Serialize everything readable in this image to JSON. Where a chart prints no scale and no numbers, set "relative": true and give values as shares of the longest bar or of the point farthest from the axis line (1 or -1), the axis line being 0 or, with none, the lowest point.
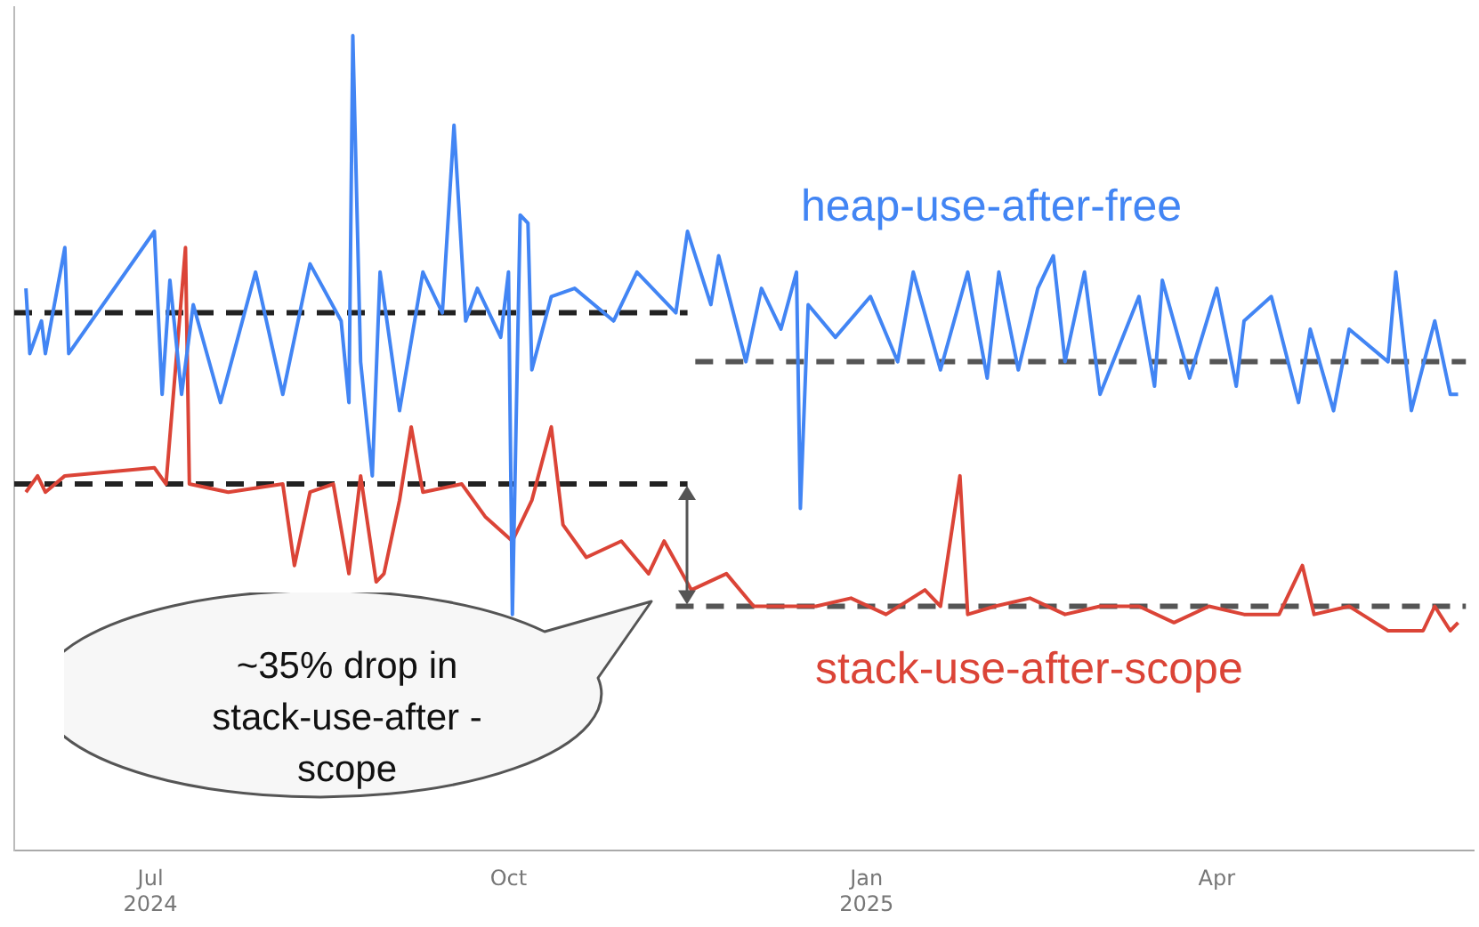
{
  "chart_data": {
    "type": "line",
    "relative": true,
    "legend": false,
    "marker": "none",
    "xlim": [
      "2024-05-27",
      "2025-06-06"
    ],
    "xticks": [
      {
        "value": "2024-07-01",
        "label": "Jul\n2024"
      },
      {
        "value": "2024-10-01",
        "label": "Oct"
      },
      {
        "value": "2025-01-01",
        "label": "Jan\n2025"
      },
      {
        "value": "2025-04-01",
        "label": "Apr"
      }
    ],
    "annotations": [
      "~35% drop in stack-use-after -scope"
    ],
    "series": [
      {
        "name": "heap-use-after-free",
        "color": "#4285f4",
        "x": [
          "2024-05-30",
          "2024-05-31",
          "2024-06-03",
          "2024-06-04",
          "2024-06-09",
          "2024-06-10",
          "2024-07-02",
          "2024-07-04",
          "2024-07-06",
          "2024-07-09",
          "2024-07-12",
          "2024-07-19",
          "2024-07-28",
          "2024-08-04",
          "2024-08-11",
          "2024-08-19",
          "2024-08-21",
          "2024-08-22",
          "2024-08-24",
          "2024-08-27",
          "2024-08-29",
          "2024-09-03",
          "2024-09-09",
          "2024-09-14",
          "2024-09-17",
          "2024-09-20",
          "2024-09-23",
          "2024-09-29",
          "2024-10-01",
          "2024-10-02",
          "2024-10-04",
          "2024-10-06",
          "2024-10-07",
          "2024-10-12",
          "2024-10-18",
          "2024-10-28",
          "2024-11-03",
          "2024-11-13",
          "2024-11-16",
          "2024-11-22",
          "2024-11-24",
          "2024-12-01",
          "2024-12-05",
          "2024-12-10",
          "2024-12-14",
          "2024-12-15",
          "2024-12-17",
          "2024-12-24",
          "2025-01-02",
          "2025-01-09",
          "2025-01-13",
          "2025-01-20",
          "2025-01-27",
          "2025-02-01",
          "2025-02-04",
          "2025-02-09",
          "2025-02-14",
          "2025-02-18",
          "2025-02-21",
          "2025-02-26",
          "2025-03-02",
          "2025-03-12",
          "2025-03-16",
          "2025-03-18",
          "2025-03-25",
          "2025-04-01",
          "2025-04-06",
          "2025-04-08",
          "2025-04-15",
          "2025-04-22",
          "2025-04-25",
          "2025-05-01",
          "2025-05-05",
          "2025-05-15",
          "2025-05-17",
          "2025-05-21",
          "2025-05-27",
          "2025-05-31",
          "2025-06-02"
        ],
        "values": [
          0.69,
          0.61,
          0.65,
          0.61,
          0.74,
          0.61,
          0.76,
          0.56,
          0.7,
          0.56,
          0.67,
          0.55,
          0.71,
          0.56,
          0.72,
          0.65,
          0.55,
          1.0,
          0.6,
          0.46,
          0.71,
          0.54,
          0.71,
          0.66,
          0.89,
          0.65,
          0.69,
          0.63,
          0.71,
          0.29,
          0.78,
          0.77,
          0.59,
          0.68,
          0.69,
          0.65,
          0.71,
          0.66,
          0.76,
          0.67,
          0.73,
          0.6,
          0.69,
          0.64,
          0.71,
          0.42,
          0.67,
          0.63,
          0.68,
          0.6,
          0.71,
          0.59,
          0.71,
          0.58,
          0.71,
          0.59,
          0.69,
          0.73,
          0.6,
          0.71,
          0.56,
          0.68,
          0.57,
          0.7,
          0.58,
          0.69,
          0.57,
          0.65,
          0.68,
          0.55,
          0.64,
          0.54,
          0.64,
          0.6,
          0.71,
          0.54,
          0.65,
          0.56,
          0.56
        ]
      },
      {
        "name": "stack-use-after-scope",
        "color": "#db4437",
        "x": [
          "2024-05-30",
          "2024-06-02",
          "2024-06-04",
          "2024-06-09",
          "2024-07-02",
          "2024-07-05",
          "2024-07-10",
          "2024-07-11",
          "2024-07-21",
          "2024-08-04",
          "2024-08-07",
          "2024-08-11",
          "2024-08-17",
          "2024-08-21",
          "2024-08-24",
          "2024-08-28",
          "2024-08-30",
          "2024-09-03",
          "2024-09-06",
          "2024-09-09",
          "2024-09-19",
          "2024-09-25",
          "2024-10-02",
          "2024-10-07",
          "2024-10-12",
          "2024-10-15",
          "2024-10-21",
          "2024-10-30",
          "2024-11-06",
          "2024-11-10",
          "2024-11-17",
          "2024-11-26",
          "2024-12-03",
          "2024-12-10",
          "2024-12-19",
          "2024-12-28",
          "2025-01-06",
          "2025-01-16",
          "2025-01-20",
          "2025-01-25",
          "2025-01-27",
          "2025-02-03",
          "2025-02-12",
          "2025-02-21",
          "2025-03-02",
          "2025-03-12",
          "2025-03-21",
          "2025-03-30",
          "2025-04-08",
          "2025-04-17",
          "2025-04-23",
          "2025-04-26",
          "2025-05-05",
          "2025-05-15",
          "2025-05-24",
          "2025-05-27",
          "2025-05-31",
          "2025-06-02"
        ],
        "values": [
          0.44,
          0.46,
          0.44,
          0.46,
          0.47,
          0.45,
          0.74,
          0.45,
          0.44,
          0.45,
          0.35,
          0.44,
          0.45,
          0.34,
          0.46,
          0.33,
          0.34,
          0.43,
          0.52,
          0.44,
          0.45,
          0.41,
          0.38,
          0.43,
          0.52,
          0.4,
          0.36,
          0.38,
          0.34,
          0.38,
          0.32,
          0.34,
          0.3,
          0.3,
          0.3,
          0.31,
          0.29,
          0.32,
          0.3,
          0.46,
          0.29,
          0.3,
          0.31,
          0.29,
          0.3,
          0.3,
          0.28,
          0.3,
          0.29,
          0.29,
          0.35,
          0.29,
          0.3,
          0.27,
          0.27,
          0.3,
          0.27,
          0.28
        ]
      },
      {
        "type": "line",
        "color": "#222222",
        "line_style": "dashed",
        "x": [
          "2024-05-27",
          "2024-11-16"
        ],
        "values": [
          0.66,
          0.66
        ]
      },
      {
        "type": "line",
        "color": "#555555",
        "line_style": "dashed",
        "x": [
          "2024-11-18",
          "2025-06-04"
        ],
        "values": [
          0.6,
          0.6
        ]
      },
      {
        "type": "line",
        "color": "#222222",
        "line_style": "dashed",
        "x": [
          "2024-05-27",
          "2024-11-16"
        ],
        "values": [
          0.45,
          0.45
        ]
      },
      {
        "type": "line",
        "color": "#555555",
        "line_style": "dashed",
        "x": [
          "2024-11-13",
          "2025-06-04"
        ],
        "values": [
          0.3,
          0.3
        ]
      }
    ]
  }
}
